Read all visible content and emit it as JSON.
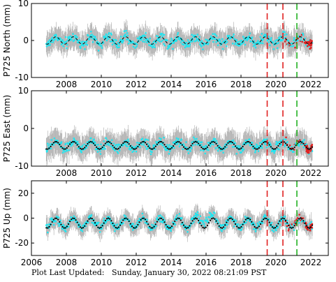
{
  "footer": {
    "label": "Plot Last Updated:",
    "value": "Sunday, January 30, 2022 08:21:09 PST"
  },
  "colors": {
    "scatter": "#22e5f0",
    "errorbar": "#a9a9a9",
    "model": "#000000",
    "recent": "#e02020",
    "event_red": "#e02020",
    "event_green": "#22b022"
  },
  "chart_data": [
    {
      "type": "scatter",
      "station": "P725",
      "ylabel": "P725 North (mm)",
      "xlim": [
        2006,
        2023
      ],
      "ylim": [
        -10,
        10
      ],
      "yticks": [
        -10,
        0,
        10
      ],
      "xticks": [
        2008,
        2010,
        2012,
        2014,
        2016,
        2018,
        2020,
        2022
      ],
      "show_xtick_labels": true,
      "series_start": 2006.85,
      "series_end": 2022.08,
      "trend_mean": 0,
      "seasonal_amplitude": 1.0,
      "scatter_spread": 2.0,
      "errorbar_halfwidth": 3.0,
      "red_points_from": 2020.5,
      "vertical_lines": [
        {
          "x": 2019.5,
          "color": "red"
        },
        {
          "x": 2020.4,
          "color": "red"
        },
        {
          "x": 2021.2,
          "color": "green"
        }
      ],
      "model_line_style": "dashed"
    },
    {
      "type": "scatter",
      "station": "P725",
      "ylabel": "P725 East (mm)",
      "xlim": [
        2006,
        2023
      ],
      "ylim": [
        -10,
        10
      ],
      "yticks": [
        -10,
        0,
        10
      ],
      "xticks": [
        2008,
        2010,
        2012,
        2014,
        2016,
        2018,
        2020,
        2022
      ],
      "show_xtick_labels": true,
      "series_start": 2006.85,
      "series_end": 2022.08,
      "trend_mean": -4.5,
      "seasonal_amplitude": 1.0,
      "scatter_spread": 1.8,
      "errorbar_halfwidth": 3.2,
      "red_points_from": 2020.5,
      "vertical_lines": [
        {
          "x": 2019.5,
          "color": "red"
        },
        {
          "x": 2020.4,
          "color": "red"
        },
        {
          "x": 2021.2,
          "color": "green"
        }
      ],
      "model_line_style": "dotted"
    },
    {
      "type": "scatter",
      "station": "P725",
      "ylabel": "P725 Up (mm)",
      "xlim": [
        2006,
        2023
      ],
      "ylim": [
        -30,
        30
      ],
      "yticks": [
        -20,
        0,
        20
      ],
      "xticks": [
        2006,
        2008,
        2010,
        2012,
        2014,
        2016,
        2018,
        2020,
        2022
      ],
      "show_xtick_labels": true,
      "series_start": 2006.85,
      "series_end": 2022.08,
      "trend_mean": -4,
      "seasonal_amplitude": 4.0,
      "scatter_spread": 5.0,
      "errorbar_halfwidth": 7.0,
      "red_points_from": 2020.5,
      "vertical_lines": [
        {
          "x": 2019.5,
          "color": "red"
        },
        {
          "x": 2020.4,
          "color": "red"
        },
        {
          "x": 2021.2,
          "color": "green"
        }
      ],
      "model_line_style": "dotted"
    }
  ]
}
